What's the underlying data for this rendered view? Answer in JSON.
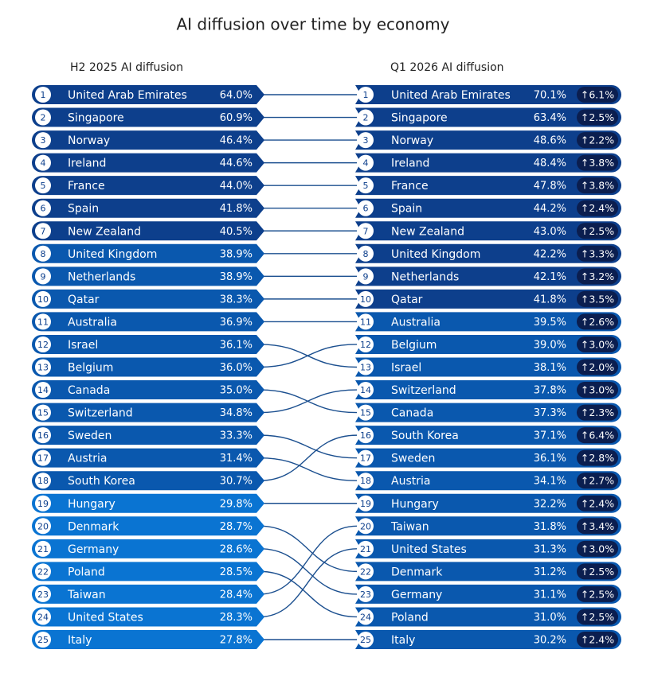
{
  "title": "AI diffusion over time by economy",
  "left": {
    "header": "H2 2025 AI diffusion",
    "rows": [
      [
        "1",
        "United Arab Emirates",
        "64.0%"
      ],
      [
        "2",
        "Singapore",
        "60.9%"
      ],
      [
        "3",
        "Norway",
        "46.4%"
      ],
      [
        "4",
        "Ireland",
        "44.6%"
      ],
      [
        "5",
        "France",
        "44.0%"
      ],
      [
        "6",
        "Spain",
        "41.8%"
      ],
      [
        "7",
        "New Zealand",
        "40.5%"
      ],
      [
        "8",
        "United Kingdom",
        "38.9%"
      ],
      [
        "9",
        "Netherlands",
        "38.9%"
      ],
      [
        "10",
        "Qatar",
        "38.3%"
      ],
      [
        "11",
        "Australia",
        "36.9%"
      ],
      [
        "12",
        "Israel",
        "36.1%"
      ],
      [
        "13",
        "Belgium",
        "36.0%"
      ],
      [
        "14",
        "Canada",
        "35.0%"
      ],
      [
        "15",
        "Switzerland",
        "34.8%"
      ],
      [
        "16",
        "Sweden",
        "33.3%"
      ],
      [
        "17",
        "Austria",
        "31.4%"
      ],
      [
        "18",
        "South Korea",
        "30.7%"
      ],
      [
        "19",
        "Hungary",
        "29.8%"
      ],
      [
        "20",
        "Denmark",
        "28.7%"
      ],
      [
        "21",
        "Germany",
        "28.6%"
      ],
      [
        "22",
        "Poland",
        "28.5%"
      ],
      [
        "23",
        "Taiwan",
        "28.4%"
      ],
      [
        "24",
        "United States",
        "28.3%"
      ],
      [
        "25",
        "Italy",
        "27.8%"
      ]
    ]
  },
  "right": {
    "header": "Q1 2026 AI diffusion",
    "rows": [
      [
        "1",
        "United Arab Emirates",
        "70.1%",
        "↑6.1%"
      ],
      [
        "2",
        "Singapore",
        "63.4%",
        "↑2.5%"
      ],
      [
        "3",
        "Norway",
        "48.6%",
        "↑2.2%"
      ],
      [
        "4",
        "Ireland",
        "48.4%",
        "↑3.8%"
      ],
      [
        "5",
        "France",
        "47.8%",
        "↑3.8%"
      ],
      [
        "6",
        "Spain",
        "44.2%",
        "↑2.4%"
      ],
      [
        "7",
        "New Zealand",
        "43.0%",
        "↑2.5%"
      ],
      [
        "8",
        "United Kingdom",
        "42.2%",
        "↑3.3%"
      ],
      [
        "9",
        "Netherlands",
        "42.1%",
        "↑3.2%"
      ],
      [
        "10",
        "Qatar",
        "41.8%",
        "↑3.5%"
      ],
      [
        "11",
        "Australia",
        "39.5%",
        "↑2.6%"
      ],
      [
        "12",
        "Belgium",
        "39.0%",
        "↑3.0%"
      ],
      [
        "13",
        "Israel",
        "38.1%",
        "↑2.0%"
      ],
      [
        "14",
        "Switzerland",
        "37.8%",
        "↑3.0%"
      ],
      [
        "15",
        "Canada",
        "37.3%",
        "↑2.3%"
      ],
      [
        "16",
        "South Korea",
        "37.1%",
        "↑6.4%"
      ],
      [
        "17",
        "Sweden",
        "36.1%",
        "↑2.8%"
      ],
      [
        "18",
        "Austria",
        "34.1%",
        "↑2.7%"
      ],
      [
        "19",
        "Hungary",
        "32.2%",
        "↑2.4%"
      ],
      [
        "20",
        "Taiwan",
        "31.8%",
        "↑3.4%"
      ],
      [
        "21",
        "United States",
        "31.3%",
        "↑3.0%"
      ],
      [
        "22",
        "Denmark",
        "31.2%",
        "↑2.5%"
      ],
      [
        "23",
        "Germany",
        "31.1%",
        "↑2.5%"
      ],
      [
        "24",
        "Poland",
        "31.0%",
        "↑2.5%"
      ],
      [
        "25",
        "Italy",
        "30.2%",
        "↑2.4%"
      ]
    ]
  }
}
